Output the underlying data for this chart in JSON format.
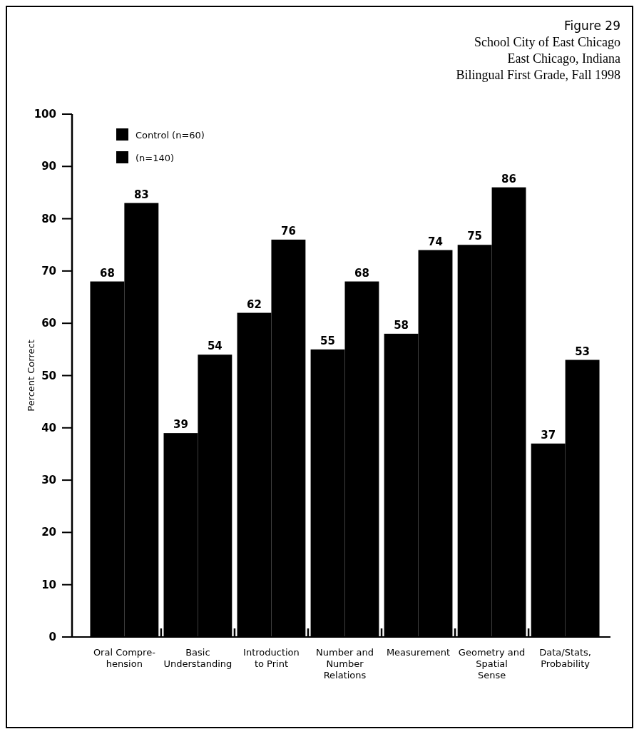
{
  "chart_data": {
    "type": "bar",
    "title": "Figure 29",
    "subtitle": "School City of East Chicago",
    "annotations": [
      "East Chicago, Indiana",
      "Bilingual First Grade, Fall 1998"
    ],
    "ylabel": "Percent Correct",
    "categories": [
      "Oral Compre-\nhension",
      "Basic Understanding",
      "Introduction to Print",
      "Number and Number Relations",
      "Measurement",
      "Geometry and Spatial Sense",
      "Data/Stats, Probability"
    ],
    "series": [
      {
        "name": "Control (n=60)",
        "color": "#000000",
        "values": [
          68,
          39,
          62,
          55,
          58,
          75,
          37
        ]
      },
      {
        "name": "(n=140)",
        "color": "#000000",
        "values": [
          83,
          54,
          76,
          68,
          74,
          86,
          53
        ]
      }
    ],
    "ylim": [
      0,
      100
    ],
    "yticks": [
      0,
      10,
      20,
      30,
      40,
      50,
      60,
      70,
      80,
      90,
      100
    ],
    "data_labels": true,
    "legend": "top left",
    "grid": false
  }
}
